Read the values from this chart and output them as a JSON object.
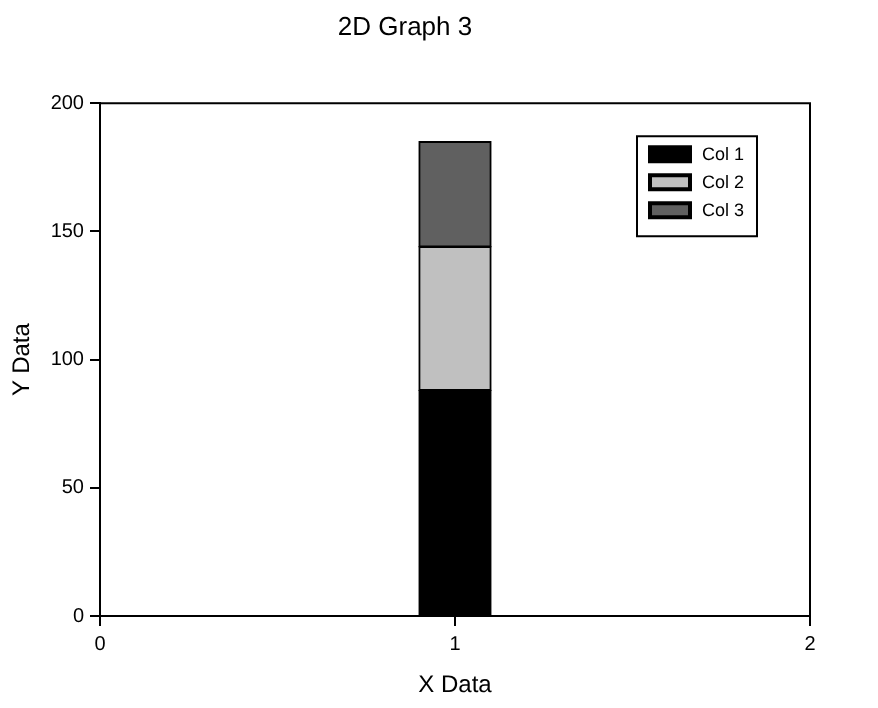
{
  "chart_data": {
    "type": "bar",
    "title": "2D Graph 3",
    "xlabel": "X Data",
    "ylabel": "Y Data",
    "x": [
      1
    ],
    "stacked": true,
    "series": [
      {
        "name": "Col 1",
        "color": "#000000",
        "values": [
          88
        ]
      },
      {
        "name": "Col 2",
        "color": "#c0c0c0",
        "values": [
          56
        ]
      },
      {
        "name": "Col 3",
        "color": "#606060",
        "values": [
          41
        ]
      }
    ],
    "xlim": [
      0,
      2
    ],
    "xticks": [
      0,
      1,
      2
    ],
    "ylim": [
      0,
      200
    ],
    "yticks": [
      0,
      50,
      100,
      150,
      200
    ],
    "grid": false,
    "legend": "top right"
  }
}
